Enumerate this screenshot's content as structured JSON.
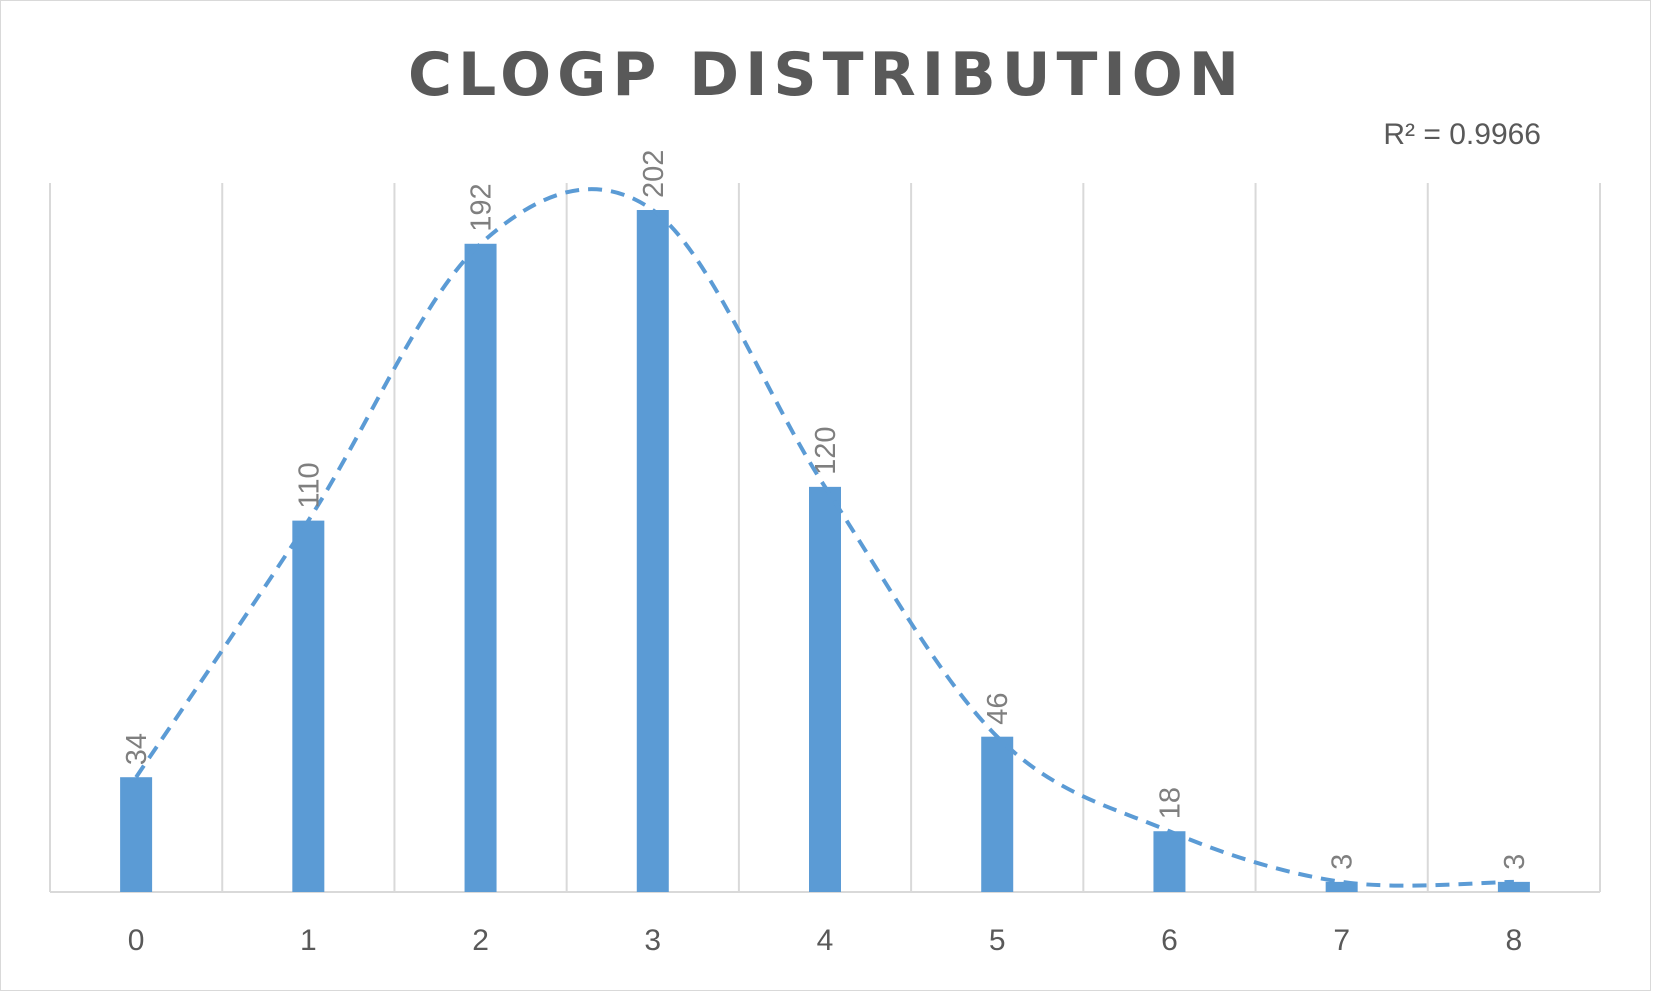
{
  "chart_data": {
    "type": "bar",
    "title": "CLOGP DISTRIBUTION",
    "categories": [
      "0",
      "1",
      "2",
      "3",
      "4",
      "5",
      "6",
      "7",
      "8"
    ],
    "values": [
      34,
      110,
      192,
      202,
      120,
      46,
      18,
      3,
      3
    ],
    "data_labels": [
      "34",
      "110",
      "192",
      "202",
      "120",
      "46",
      "18",
      "3",
      "3"
    ],
    "trendline": {
      "style": "dashed",
      "annotation": "R² = 0.9966"
    },
    "xlabel": "",
    "ylabel": "",
    "ylim": [
      0,
      210
    ],
    "grid": "vertical",
    "legend": "none",
    "colors": {
      "bar": "#5b9bd5",
      "trendline": "#5b9bd5",
      "grid": "#d9d9d9",
      "text": "#595959",
      "data_label": "#7f7f7f"
    }
  }
}
